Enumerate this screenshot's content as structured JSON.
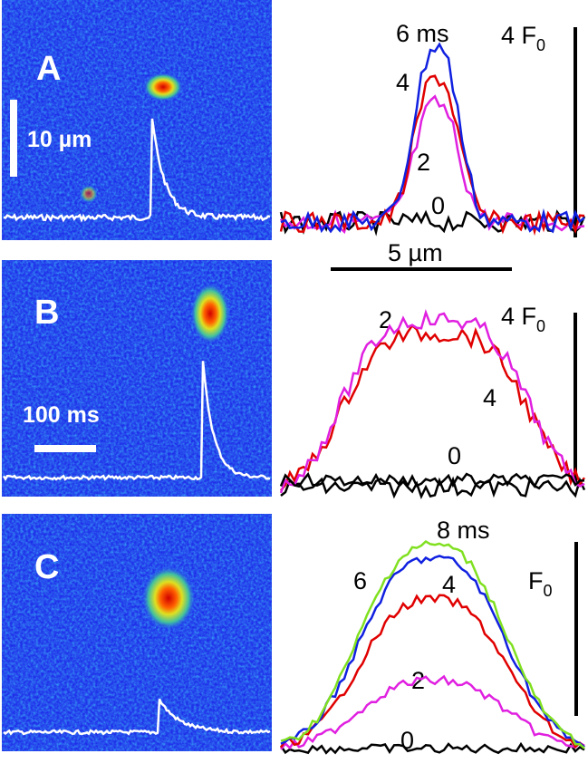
{
  "panels": [
    {
      "label": "A",
      "scale_bar": "10 µm",
      "trace_labels": [
        "6 ms",
        "4",
        "2",
        "0"
      ],
      "amplitude": {
        "text": "4 F",
        "sub": "0"
      },
      "distance_bar": "5 µm"
    },
    {
      "label": "B",
      "scale_bar": "100 ms",
      "trace_labels": [
        "2",
        "4",
        "0"
      ],
      "amplitude": {
        "text": "4 F",
        "sub": "0"
      }
    },
    {
      "label": "C",
      "trace_labels": [
        "8 ms",
        "6",
        "4",
        "2",
        "0"
      ],
      "amplitude": {
        "text": "F",
        "sub": "0"
      }
    }
  ]
}
